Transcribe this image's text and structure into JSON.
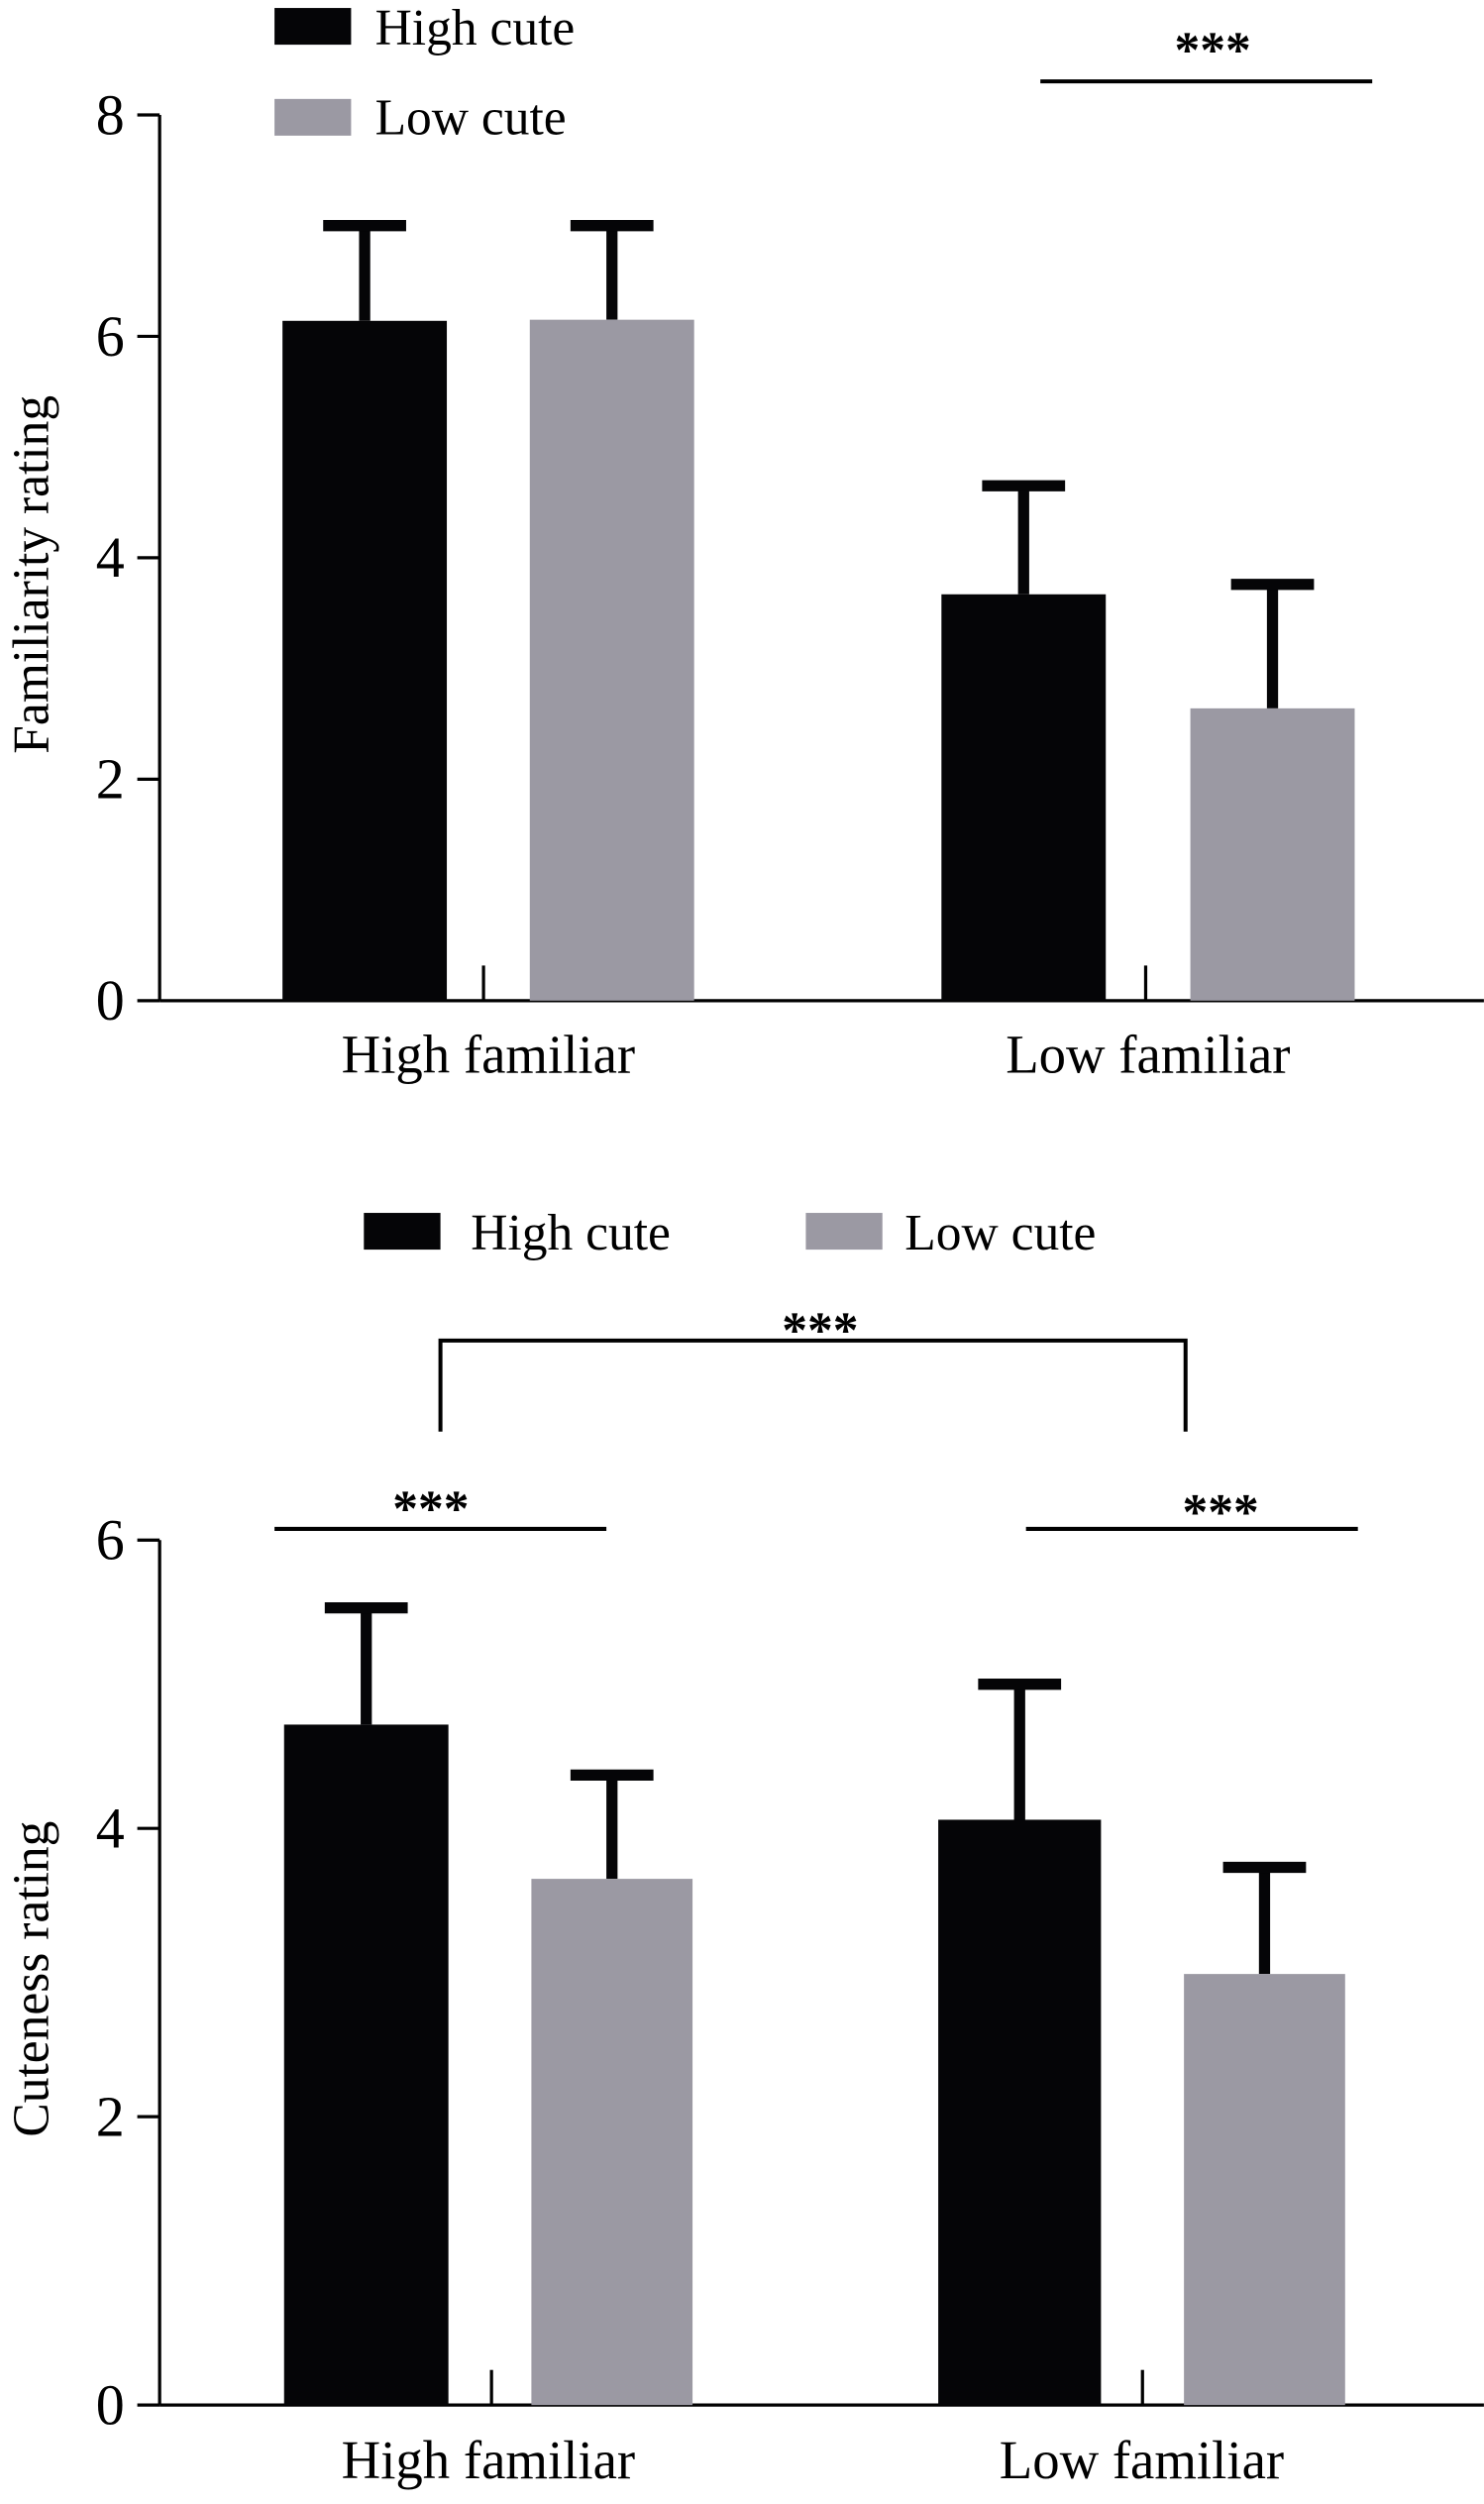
{
  "colors": {
    "high_cute": "#050507",
    "low_cute": "#9b99a3",
    "axis": "#000000"
  },
  "chart_data": [
    {
      "type": "bar",
      "ylabel": "Familiarity rating",
      "ylim": [
        0,
        8
      ],
      "yticks": [
        0,
        2,
        4,
        6,
        8
      ],
      "categories": [
        "High familiar",
        "Low familiar"
      ],
      "legend": {
        "placement": "top-left",
        "layout": "vertical"
      },
      "series": [
        {
          "name": "High cute",
          "values": [
            6.14,
            3.67
          ],
          "error_upper": [
            7.0,
            4.65
          ]
        },
        {
          "name": "Low cute",
          "values": [
            6.15,
            2.64
          ],
          "error_upper": [
            7.0,
            3.76
          ]
        }
      ],
      "annotations": [
        {
          "text": "***",
          "type": "line",
          "group": "Low familiar"
        }
      ]
    },
    {
      "type": "bar",
      "ylabel": "Cuteness rating",
      "ylim": [
        0,
        6
      ],
      "yticks": [
        0,
        2,
        4,
        6
      ],
      "categories": [
        "High familiar",
        "Low familiar"
      ],
      "legend": {
        "placement": "top",
        "layout": "horizontal"
      },
      "series": [
        {
          "name": "High cute",
          "values": [
            4.72,
            4.06
          ],
          "error_upper": [
            5.53,
            5.0
          ]
        },
        {
          "name": "Low cute",
          "values": [
            3.65,
            2.99
          ],
          "error_upper": [
            4.37,
            3.73
          ]
        }
      ],
      "annotations": [
        {
          "text": "***",
          "type": "line",
          "group": "High familiar"
        },
        {
          "text": "***",
          "type": "line",
          "group": "Low familiar"
        },
        {
          "text": "***",
          "type": "bracket",
          "between": [
            "High familiar",
            "Low familiar"
          ]
        }
      ]
    }
  ]
}
